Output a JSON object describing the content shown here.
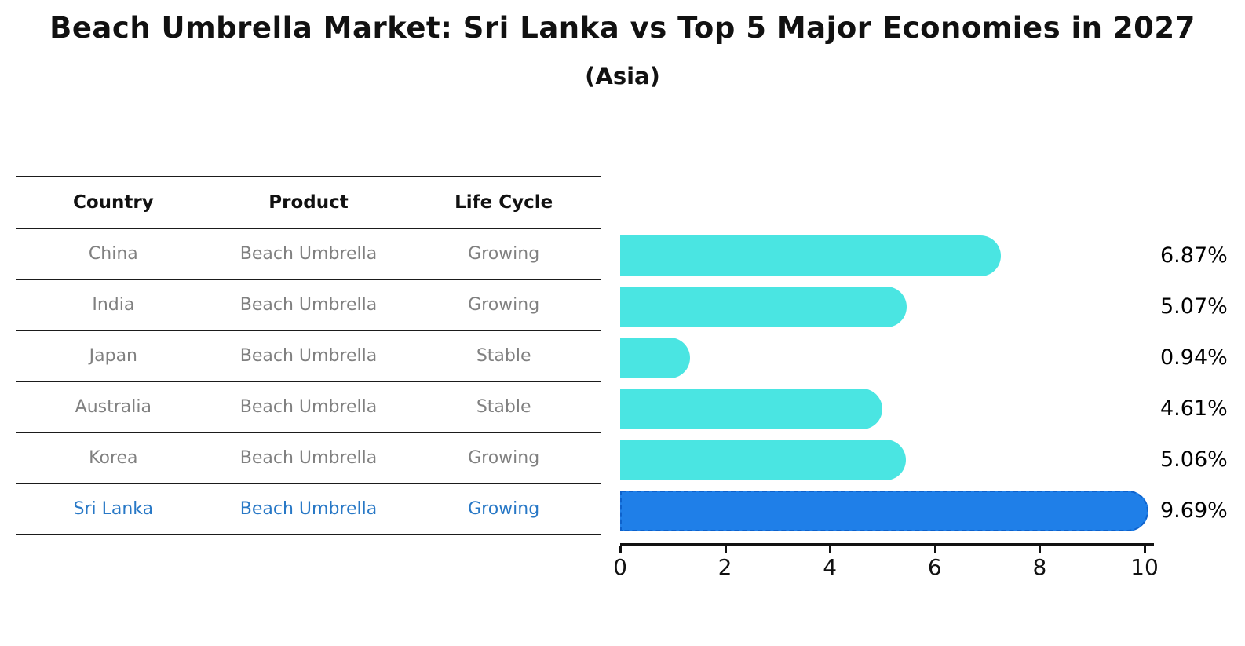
{
  "title": "Beach Umbrella Market: Sri Lanka vs Top 5 Major Economies in 2027",
  "subtitle": "(Asia)",
  "table": {
    "headers": [
      "Country",
      "Product",
      "Life Cycle"
    ],
    "rows": [
      {
        "country": "China",
        "product": "Beach Umbrella",
        "life_cycle": "Growing",
        "highlight": false
      },
      {
        "country": "India",
        "product": "Beach Umbrella",
        "life_cycle": "Growing",
        "highlight": false
      },
      {
        "country": "Japan",
        "product": "Beach Umbrella",
        "life_cycle": "Stable",
        "highlight": false
      },
      {
        "country": "Australia",
        "product": "Beach Umbrella",
        "life_cycle": "Stable",
        "highlight": false
      },
      {
        "country": "Korea",
        "product": "Beach Umbrella",
        "life_cycle": "Growing",
        "highlight": false
      },
      {
        "country": "Sri Lanka",
        "product": "Beach Umbrella",
        "life_cycle": "Growing",
        "highlight": true
      }
    ]
  },
  "chart_data": {
    "type": "bar",
    "orientation": "horizontal",
    "title": "Beach Umbrella Market: Sri Lanka vs Top 5 Major Economies in 2027",
    "subtitle": "(Asia)",
    "categories": [
      "China",
      "India",
      "Japan",
      "Australia",
      "Korea",
      "Sri Lanka"
    ],
    "values": [
      6.87,
      5.07,
      0.94,
      4.61,
      5.06,
      9.69
    ],
    "value_labels": [
      "6.87%",
      "5.07%",
      "0.94%",
      "4.61%",
      "5.06%",
      "9.69%"
    ],
    "highlight_index": 5,
    "xlim": [
      0,
      10
    ],
    "xticks": [
      0,
      2,
      4,
      6,
      8,
      10
    ],
    "grid": false,
    "legend": false,
    "colors": {
      "bar": "#4ae5e2",
      "highlight_bar": "#1f7fe8",
      "highlight_border": "#0e62cc",
      "highlight_text": "#2878c6",
      "cell_text": "#808080",
      "axis": "#111111"
    }
  }
}
